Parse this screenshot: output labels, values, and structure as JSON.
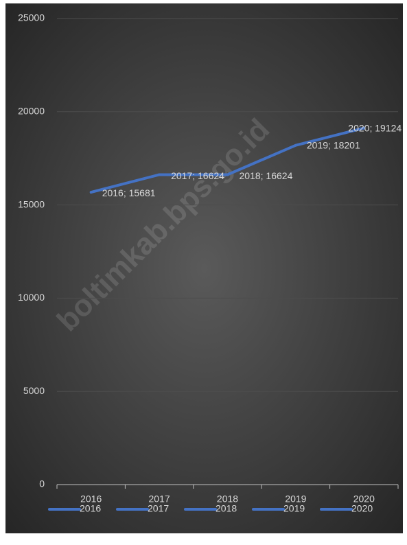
{
  "chart_data": {
    "type": "line",
    "categories": [
      "2016",
      "2017",
      "2018",
      "2019",
      "2020"
    ],
    "values": [
      15681,
      16624,
      16624,
      18201,
      19124
    ],
    "value_labels": [
      "2016; 15681",
      "2017; 16624",
      "2018; 16624",
      "2019; 18201",
      "2020; 19124"
    ],
    "color": "#4472c4",
    "ylim": [
      0,
      25000
    ],
    "yticks": [
      0,
      5000,
      10000,
      15000,
      20000,
      25000
    ],
    "grid": true,
    "legend": [
      "2016",
      "2017",
      "2018",
      "2019",
      "2020"
    ],
    "legend_position": "bottom",
    "watermark": "boltimkab.bps.go.id"
  }
}
